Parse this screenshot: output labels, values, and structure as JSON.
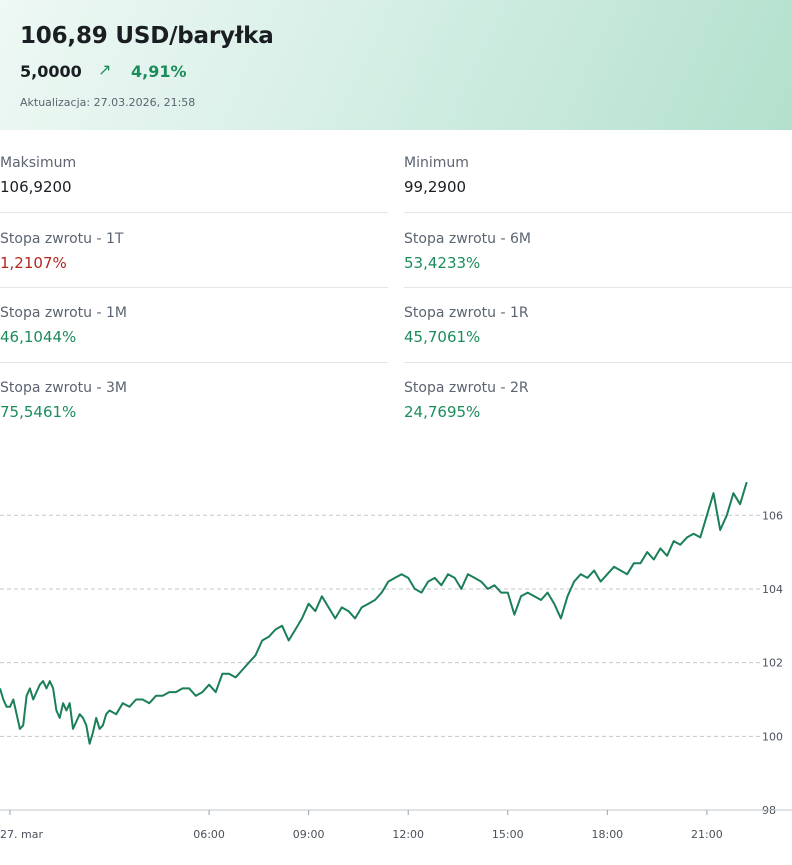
{
  "header": {
    "price": "106,89 USD/baryłka",
    "change_abs": "5,0000",
    "change_arrow": "↗",
    "change_pct": "4,91%",
    "updated": "Aktualizacja: 27.03.2026, 21:58"
  },
  "stats": {
    "max_label": "Maksimum",
    "max_value": "106,9200",
    "min_label": "Minimum",
    "min_value": "99,2900",
    "r1t_label": "Stopa zwrotu - 1T",
    "r1t_value": "1,2107%",
    "r6m_label": "Stopa zwrotu - 6M",
    "r6m_value": "53,4233%",
    "r1m_label": "Stopa zwrotu - 1M",
    "r1m_value": "46,1044%",
    "r1r_label": "Stopa zwrotu - 1R",
    "r1r_value": "45,7061%",
    "r3m_label": "Stopa zwrotu - 3M",
    "r3m_value": "75,5461%",
    "r2r_label": "Stopa zwrotu - 2R",
    "r2r_value": "24,7695%"
  },
  "colors": {
    "accent_green": "#1b8c5a",
    "negative_red": "#b3261e",
    "line": "#1b7f57"
  },
  "chart_data": {
    "type": "line",
    "title": "",
    "xlabel": "",
    "ylabel": "",
    "ylim": [
      98,
      107.5
    ],
    "xlim": [
      -0.3,
      22.6
    ],
    "yticks": [
      98,
      100,
      102,
      104,
      106
    ],
    "ytick_labels": [
      "98",
      "100",
      "102",
      "104",
      "106"
    ],
    "xticks": [
      0,
      6,
      9,
      12,
      15,
      18,
      21
    ],
    "xtick_labels": [
      "27. mar",
      "06:00",
      "09:00",
      "12:00",
      "15:00",
      "18:00",
      "21:00"
    ],
    "grid": "horizontal dashed",
    "series": [
      {
        "x": [
          -0.3,
          -0.2,
          -0.1,
          0.0,
          0.1,
          0.2,
          0.3,
          0.4,
          0.5,
          0.6,
          0.7,
          0.8,
          0.9,
          1.0,
          1.1,
          1.2,
          1.3,
          1.4,
          1.5,
          1.6,
          1.7,
          1.8,
          1.9,
          2.0,
          2.1,
          2.2,
          2.3,
          2.4,
          2.5,
          2.6,
          2.7,
          2.8,
          2.9,
          3.0,
          3.2,
          3.4,
          3.6,
          3.8,
          4.0,
          4.2,
          4.4,
          4.6,
          4.8,
          5.0,
          5.2,
          5.4,
          5.6,
          5.8,
          6.0,
          6.2,
          6.4,
          6.6,
          6.8,
          7.0,
          7.2,
          7.4,
          7.6,
          7.8,
          8.0,
          8.2,
          8.4,
          8.6,
          8.8,
          9.0,
          9.2,
          9.4,
          9.6,
          9.8,
          10.0,
          10.2,
          10.4,
          10.6,
          10.8,
          11.0,
          11.2,
          11.4,
          11.6,
          11.8,
          12.0,
          12.2,
          12.4,
          12.6,
          12.8,
          13.0,
          13.2,
          13.4,
          13.6,
          13.8,
          14.0,
          14.2,
          14.4,
          14.6,
          14.8,
          15.0,
          15.2,
          15.4,
          15.6,
          15.8,
          16.0,
          16.2,
          16.4,
          16.6,
          16.8,
          17.0,
          17.2,
          17.4,
          17.6,
          17.8,
          18.0,
          18.2,
          18.4,
          18.6,
          18.8,
          19.0,
          19.2,
          19.4,
          19.6,
          19.8,
          20.0,
          20.2,
          20.4,
          20.6,
          20.8,
          21.0,
          21.2,
          21.4,
          21.6,
          21.8,
          22.0,
          22.2
        ],
        "y": [
          101.3,
          101.0,
          100.8,
          100.8,
          101.0,
          100.6,
          100.2,
          100.3,
          101.1,
          101.3,
          101.0,
          101.2,
          101.4,
          101.5,
          101.3,
          101.5,
          101.3,
          100.7,
          100.5,
          100.9,
          100.7,
          100.9,
          100.2,
          100.4,
          100.6,
          100.5,
          100.3,
          99.8,
          100.1,
          100.5,
          100.2,
          100.3,
          100.6,
          100.7,
          100.6,
          100.9,
          100.8,
          101.0,
          101.0,
          100.9,
          101.1,
          101.1,
          101.2,
          101.2,
          101.3,
          101.3,
          101.1,
          101.2,
          101.4,
          101.2,
          101.7,
          101.7,
          101.6,
          101.8,
          102.0,
          102.2,
          102.6,
          102.7,
          102.9,
          103.0,
          102.6,
          102.9,
          103.2,
          103.6,
          103.4,
          103.8,
          103.5,
          103.2,
          103.5,
          103.4,
          103.2,
          103.5,
          103.6,
          103.7,
          103.9,
          104.2,
          104.3,
          104.4,
          104.3,
          104.0,
          103.9,
          104.2,
          104.3,
          104.1,
          104.4,
          104.3,
          104.0,
          104.4,
          104.3,
          104.2,
          104.0,
          104.1,
          103.9,
          103.9,
          103.3,
          103.8,
          103.9,
          103.8,
          103.7,
          103.9,
          103.6,
          103.2,
          103.8,
          104.2,
          104.4,
          104.3,
          104.5,
          104.2,
          104.4,
          104.6,
          104.5,
          104.4,
          104.7,
          104.7,
          105.0,
          104.8,
          105.1,
          104.9,
          105.3,
          105.2,
          105.4,
          105.5,
          105.4,
          106.0,
          106.6,
          105.6,
          106.0,
          106.6,
          106.3,
          106.9
        ]
      }
    ]
  }
}
